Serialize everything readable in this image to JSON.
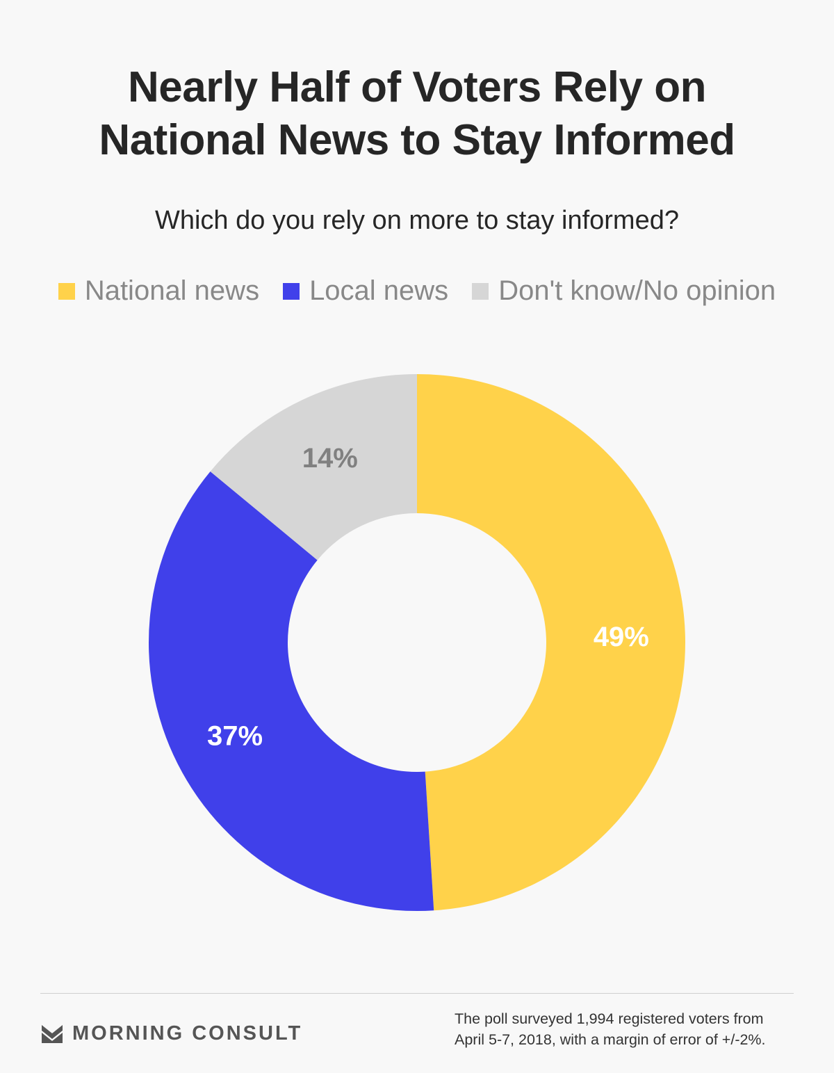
{
  "title_lines": [
    "Nearly Half of Voters Rely on",
    "National News to Stay Informed"
  ],
  "subtitle": "Which do you rely on more to stay informed?",
  "chart_data": {
    "type": "pie",
    "donut": true,
    "title": "Nearly Half of Voters Rely on National News to Stay Informed",
    "subtitle": "Which do you rely on more to stay informed?",
    "legend_position": "top",
    "slices": [
      {
        "label": "National news",
        "value": 49,
        "display": "49%",
        "color": "#ffd24a",
        "label_color": "#ffffff"
      },
      {
        "label": "Local news",
        "value": 37,
        "display": "37%",
        "color": "#4040ea",
        "label_color": "#ffffff"
      },
      {
        "label": "Don't know/No opinion",
        "value": 14,
        "display": "14%",
        "color": "#d6d6d6",
        "label_color": "#808080"
      }
    ]
  },
  "brand": {
    "name": "MORNING CONSULT",
    "icon": "morning-consult-logo-icon"
  },
  "footnote_lines": [
    "The poll surveyed 1,994 registered voters from",
    "April 5-7, 2018, with a margin of error of +/-2%."
  ]
}
